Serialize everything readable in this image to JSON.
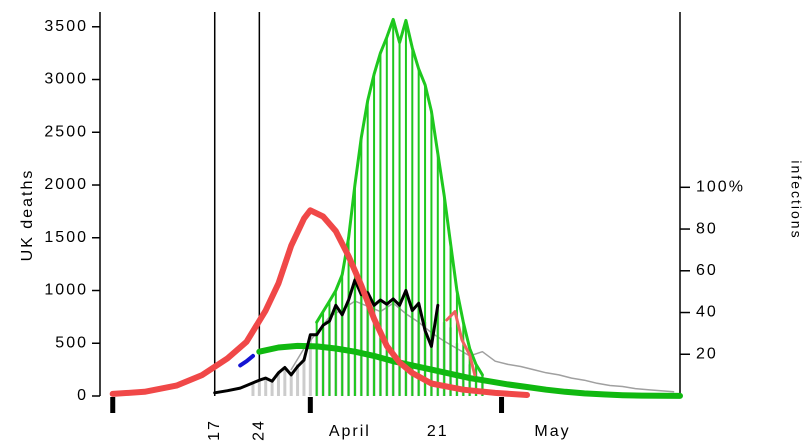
{
  "chart_data": {
    "type": "line",
    "y_label": "UK deaths",
    "y2_label": "infections",
    "xlim": [
      -2,
      89
    ],
    "ylim": [
      0,
      3640
    ],
    "y2lim": [
      0,
      184
    ],
    "yticks": [
      0,
      500,
      1000,
      1500,
      2000,
      2500,
      3000,
      3500
    ],
    "y2ticks": [
      20,
      40,
      60,
      80,
      {
        "value": 100,
        "label": "100%"
      }
    ],
    "xticks": [
      {
        "value": 16,
        "label": "17"
      },
      {
        "value": 23,
        "label": "24"
      },
      {
        "value": 37.2,
        "label": "April"
      },
      {
        "value": 51,
        "label": "21"
      },
      {
        "value": 69,
        "label": "May"
      }
    ],
    "xmajor": [
      0,
      31,
      61
    ],
    "vlines": [
      16,
      23
    ],
    "series": [
      {
        "type": "bar",
        "color": "#cccccc",
        "axis": "y",
        "linewidth": 3,
        "x": [
          22,
          23,
          24,
          25,
          26,
          27,
          28,
          29,
          30,
          31,
          32,
          33,
          34,
          35,
          36,
          37,
          38,
          39,
          40,
          41,
          42,
          43,
          44,
          45,
          46,
          47,
          48,
          49,
          50,
          51,
          52,
          53,
          54,
          55,
          56,
          57,
          58
        ],
        "values": [
          120,
          150,
          160,
          150,
          210,
          260,
          230,
          300,
          360,
          560,
          600,
          650,
          720,
          820,
          800,
          900,
          1050,
          980,
          960,
          880,
          900,
          880,
          900,
          870,
          950,
          830,
          860,
          700,
          600,
          820,
          700,
          650,
          500,
          400,
          300,
          250,
          200
        ]
      },
      {
        "type": "line",
        "color": "#a0a0a0",
        "axis": "y",
        "linewidth": 1.5,
        "x": [
          28,
          30,
          32,
          34,
          36,
          38,
          40,
          42,
          44,
          46,
          48,
          50,
          52,
          54,
          56,
          58,
          60,
          62,
          64,
          66,
          68,
          70,
          72,
          74,
          76,
          78,
          80,
          82,
          84,
          86,
          88
        ],
        "values": [
          250,
          450,
          600,
          750,
          820,
          900,
          850,
          800,
          880,
          780,
          700,
          600,
          520,
          450,
          380,
          420,
          330,
          300,
          280,
          250,
          220,
          200,
          170,
          150,
          120,
          100,
          90,
          70,
          60,
          50,
          40
        ]
      },
      {
        "type": "barline",
        "color": "#1ec81e",
        "axis": "y",
        "linewidth": 3,
        "x": [
          32,
          33,
          34,
          35,
          36,
          37,
          38,
          39,
          40,
          41,
          42,
          43,
          44,
          45,
          46,
          47,
          48,
          49,
          50,
          51,
          52,
          53,
          54,
          55,
          56,
          57,
          58
        ],
        "values": [
          700,
          800,
          900,
          1000,
          1150,
          1500,
          2000,
          2450,
          2800,
          3050,
          3250,
          3400,
          3570,
          3350,
          3560,
          3300,
          3100,
          2950,
          2700,
          2300,
          1900,
          1450,
          1000,
          700,
          450,
          300,
          200
        ]
      },
      {
        "type": "line",
        "color": "#10b810",
        "axis": "y",
        "linewidth": 6,
        "x": [
          23,
          26,
          29,
          32,
          35,
          38,
          41,
          44,
          47,
          50,
          53,
          56,
          59,
          62,
          65,
          68,
          71,
          74,
          77,
          80,
          83,
          86,
          89
        ],
        "values": [
          420,
          460,
          475,
          470,
          450,
          420,
          380,
          330,
          290,
          250,
          210,
          170,
          140,
          110,
          85,
          60,
          40,
          25,
          15,
          8,
          4,
          2,
          1
        ]
      },
      {
        "type": "line",
        "color": "#1414d2",
        "axis": "y",
        "linewidth": 4,
        "x": [
          20,
          21,
          22
        ],
        "values": [
          290,
          330,
          380
        ]
      },
      {
        "type": "line",
        "color": "#000000",
        "axis": "y",
        "linewidth": 3,
        "x": [
          16,
          18,
          20,
          21,
          23,
          24,
          25,
          26,
          27,
          28,
          29,
          30,
          31,
          32,
          33,
          34,
          35,
          36,
          37,
          38,
          39,
          40,
          41,
          42,
          43,
          44,
          45,
          46,
          47,
          48,
          49,
          50,
          51
        ],
        "values": [
          30,
          50,
          75,
          100,
          150,
          170,
          140,
          220,
          270,
          200,
          280,
          340,
          580,
          580,
          670,
          710,
          860,
          770,
          910,
          1100,
          960,
          980,
          860,
          910,
          870,
          920,
          860,
          1000,
          810,
          880,
          620,
          470,
          860
        ]
      },
      {
        "type": "line",
        "color": "#f06060",
        "axis": "y",
        "linewidth": 3,
        "x": [
          52.4,
          53.7,
          54.8,
          56,
          56.8
        ],
        "values": [
          720,
          800,
          530,
          390,
          200
        ]
      },
      {
        "type": "line",
        "color": "#f04848",
        "axis": "y2",
        "linewidth": 6,
        "x": [
          0,
          5,
          10,
          14,
          18,
          21,
          24,
          26,
          28,
          30,
          31,
          33,
          35,
          37,
          39,
          41,
          43,
          45,
          47,
          50,
          55,
          60,
          65
        ],
        "values": [
          1,
          2,
          5,
          10,
          18,
          26,
          41,
          54,
          72,
          85,
          89,
          86,
          79,
          67,
          53,
          37,
          24,
          16,
          11,
          6,
          3,
          1.5,
          0.5
        ]
      }
    ]
  }
}
